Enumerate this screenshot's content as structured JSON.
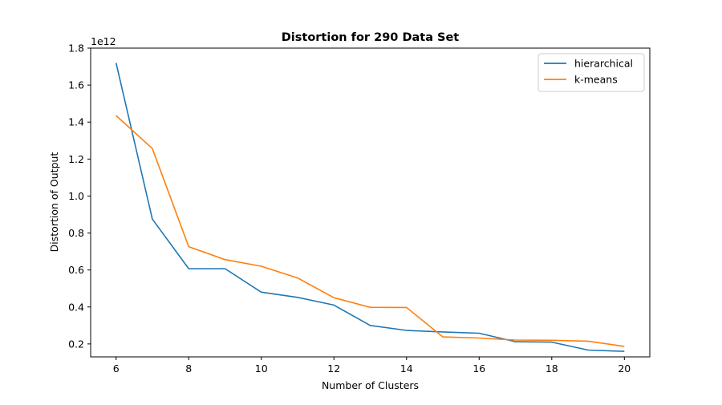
{
  "chart_data": {
    "type": "line",
    "title": "Distortion for 290 Data Set",
    "xlabel": "Number of Clusters",
    "ylabel": "Distortion of Output",
    "y_offset_label": "1e12",
    "xlim": [
      5.3,
      20.7
    ],
    "ylim": [
      0.13,
      1.8
    ],
    "xticks": [
      6,
      8,
      10,
      12,
      14,
      16,
      18,
      20
    ],
    "xtick_labels": [
      "6",
      "8",
      "10",
      "12",
      "14",
      "16",
      "18",
      "20"
    ],
    "yticks": [
      0.2,
      0.4,
      0.6,
      0.8,
      1.0,
      1.2,
      1.4,
      1.6,
      1.8
    ],
    "ytick_labels": [
      "0.2",
      "0.4",
      "0.6",
      "0.8",
      "1.0",
      "1.2",
      "1.4",
      "1.6",
      "1.8"
    ],
    "legend_position": "top-right",
    "grid": false,
    "x": [
      6,
      7,
      8,
      9,
      10,
      11,
      12,
      13,
      14,
      15,
      16,
      17,
      18,
      19,
      20
    ],
    "series": [
      {
        "name": "hierarchical",
        "color": "#1f77b4",
        "values": [
          1.72,
          0.875,
          0.607,
          0.607,
          0.48,
          0.452,
          0.41,
          0.3,
          0.273,
          0.265,
          0.258,
          0.212,
          0.21,
          0.167,
          0.16
        ]
      },
      {
        "name": "k-means",
        "color": "#ff7f0e",
        "values": [
          1.435,
          1.257,
          0.726,
          0.656,
          0.62,
          0.557,
          0.45,
          0.398,
          0.397,
          0.238,
          0.232,
          0.221,
          0.22,
          0.215,
          0.187
        ]
      }
    ]
  }
}
